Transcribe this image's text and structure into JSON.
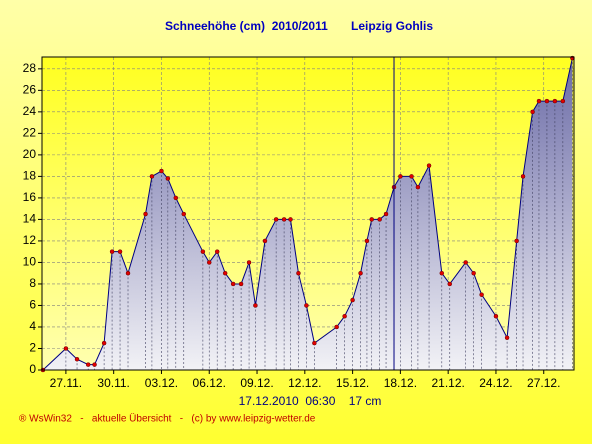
{
  "chart_data": {
    "type": "area",
    "title": "Schneehöhe (cm)  2010/2011",
    "subtitle": "Leipzig Gohlis",
    "footer": "® WsWin32   -   aktuelle Übersicht   -   (c) by www.leipzig-wetter.de",
    "cursor": {
      "x": 47.6,
      "label": "17.12.2010  06:30    17 cm"
    },
    "x": [
      25.56,
      27.0,
      27.7,
      28.4,
      28.8,
      29.4,
      29.9,
      30.4,
      30.9,
      32.0,
      32.4,
      33.0,
      33.4,
      33.9,
      34.4,
      35.6,
      36.0,
      36.5,
      37.0,
      37.5,
      38.0,
      38.5,
      38.9,
      39.5,
      40.2,
      40.7,
      41.1,
      41.6,
      42.1,
      42.6,
      44.0,
      44.5,
      45.0,
      45.5,
      45.9,
      46.2,
      46.7,
      47.1,
      47.6,
      48.0,
      48.7,
      49.1,
      49.8,
      50.6,
      51.1,
      52.1,
      52.6,
      53.1,
      54.0,
      54.7,
      55.3,
      55.7,
      56.3,
      56.7,
      57.2,
      57.7,
      58.2,
      58.8
    ],
    "series": [
      {
        "color": "#000080",
        "values": [
          0,
          2,
          1,
          0.5,
          0.5,
          2.5,
          11,
          11,
          9,
          14.5,
          18,
          18.5,
          17.8,
          16,
          14.5,
          11,
          10,
          11,
          9,
          8,
          8,
          10,
          6,
          12,
          14,
          14,
          14,
          9,
          6,
          2.5,
          4,
          5,
          6.5,
          9,
          12,
          14,
          14,
          14.5,
          17,
          18,
          18,
          17,
          19,
          9,
          8,
          10,
          9,
          7,
          5,
          3,
          12,
          18,
          24,
          25,
          25,
          25,
          25,
          29
        ]
      }
    ],
    "xlim": [
      25.5,
      58.9
    ],
    "xticks": [
      {
        "value": 27,
        "label": "27.11."
      },
      {
        "value": 30,
        "label": "30.11."
      },
      {
        "value": 33,
        "label": "03.12."
      },
      {
        "value": 36,
        "label": "06.12."
      },
      {
        "value": 39,
        "label": "09.12."
      },
      {
        "value": 42,
        "label": "12.12."
      },
      {
        "value": 45,
        "label": "15.12."
      },
      {
        "value": 48,
        "label": "18.12."
      },
      {
        "value": 51,
        "label": "21.12."
      },
      {
        "value": 54,
        "label": "24.12."
      },
      {
        "value": 57,
        "label": "27.12."
      }
    ],
    "ylim": [
      0,
      29.1
    ],
    "yticks": [
      0,
      2,
      4,
      6,
      8,
      10,
      12,
      14,
      16,
      18,
      20,
      22,
      24,
      26,
      28
    ],
    "grid": true
  }
}
